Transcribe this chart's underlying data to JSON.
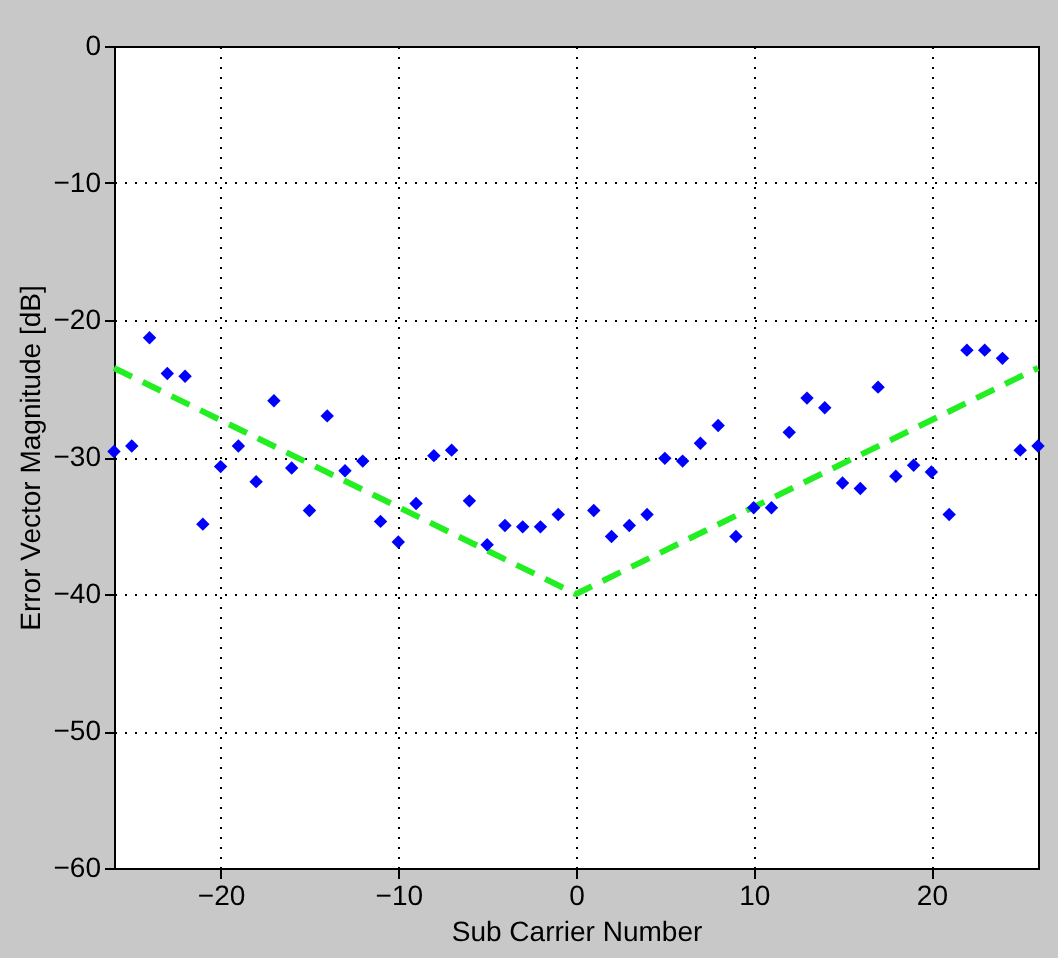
{
  "chart_data": {
    "type": "scatter",
    "xlabel": "Sub Carrier Number",
    "ylabel": "Error Vector Magnitude [dB]",
    "xlim": [
      -26,
      26
    ],
    "xticks": [
      -20,
      -10,
      0,
      10,
      20
    ],
    "ylim": [
      -60,
      0
    ],
    "yticks": [
      -60,
      -50,
      -40,
      -30,
      -20,
      -10,
      0
    ],
    "grid": true,
    "series": [
      {
        "color": "#0000ff",
        "marker": "diamond",
        "x": [
          -26,
          -25,
          -24,
          -23,
          -22,
          -21,
          -20,
          -19,
          -18,
          -17,
          -16,
          -15,
          -14,
          -13,
          -12,
          -11,
          -10,
          -9,
          -8,
          -7,
          -6,
          -5,
          -4,
          -3,
          -2,
          -1,
          1,
          2,
          3,
          4,
          5,
          6,
          7,
          8,
          9,
          10,
          11,
          12,
          13,
          14,
          15,
          16,
          17,
          18,
          19,
          20,
          21,
          22,
          23,
          24,
          25,
          26
        ],
        "values": [
          -29.6,
          -29.2,
          -21.3,
          -23.9,
          -24.1,
          -34.9,
          -30.7,
          -29.2,
          -31.8,
          -25.9,
          -30.8,
          -33.9,
          -27.0,
          -31.0,
          -30.3,
          -34.7,
          -36.2,
          -33.4,
          -29.9,
          -29.5,
          -33.2,
          -36.4,
          -35.0,
          -35.1,
          -35.1,
          -34.2,
          -33.9,
          -35.8,
          -35.0,
          -34.2,
          -30.1,
          -30.3,
          -29.0,
          -27.7,
          -35.8,
          -33.7,
          -33.7,
          -28.2,
          -25.7,
          -26.4,
          -31.9,
          -32.3,
          -24.9,
          -31.4,
          -30.6,
          -31.1,
          -34.2,
          -22.2,
          -22.2,
          -22.8,
          -29.5,
          -29.2
        ]
      },
      {
        "type": "line",
        "color": "#22ee22",
        "line_style": "dashed",
        "marker": "none",
        "x": [
          -26,
          0,
          26
        ],
        "values": [
          -23.5,
          -40,
          -23.5
        ]
      }
    ]
  }
}
